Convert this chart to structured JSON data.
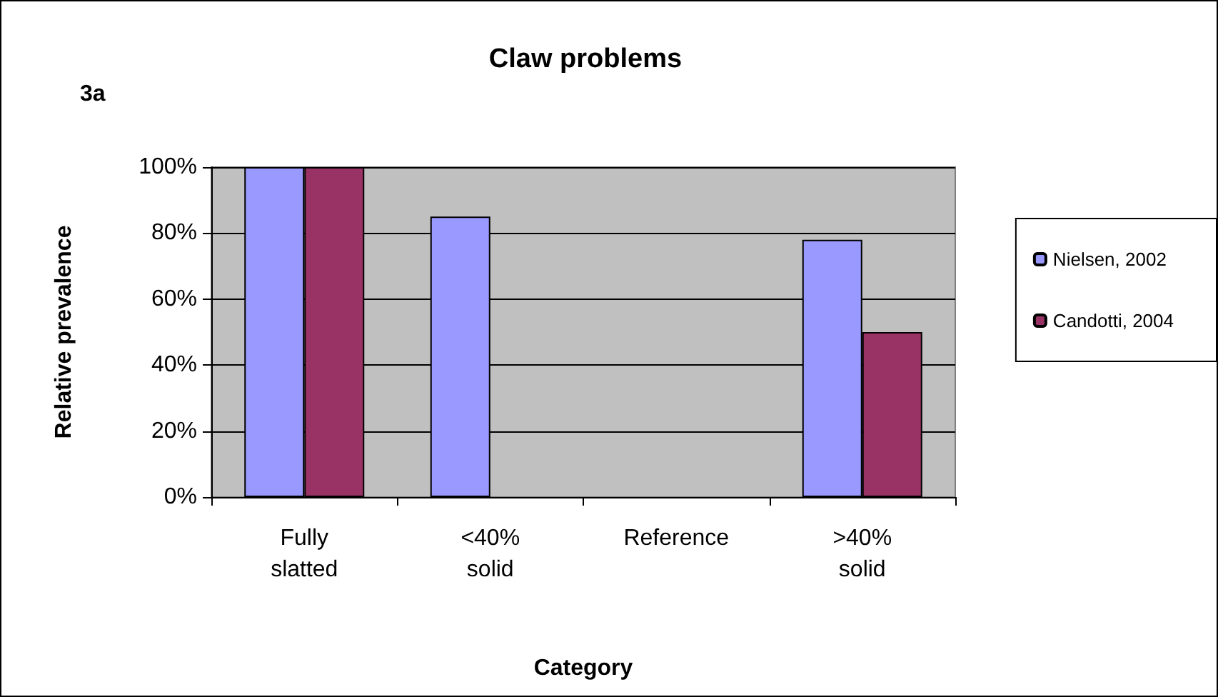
{
  "chart_data": {
    "type": "bar",
    "title": "Claw problems",
    "xlabel": "Category",
    "ylabel": "Relative prevalence",
    "annotations": [
      "3a"
    ],
    "categories": [
      "Fully slatted",
      "<40% solid",
      "Reference",
      ">40% solid"
    ],
    "series": [
      {
        "name": "Nielsen, 2002",
        "color": "#9999ff",
        "values": [
          100,
          85,
          null,
          78
        ]
      },
      {
        "name": "Candotti, 2004",
        "color": "#993366",
        "values": [
          100,
          null,
          null,
          50
        ]
      }
    ],
    "ylim": [
      0,
      100
    ],
    "yticks": [
      {
        "value": 0,
        "label": "0%"
      },
      {
        "value": 20,
        "label": "20%"
      },
      {
        "value": 40,
        "label": "40%"
      },
      {
        "value": 60,
        "label": "60%"
      },
      {
        "value": 80,
        "label": "80%"
      },
      {
        "value": 100,
        "label": "100%"
      }
    ],
    "grid": "y",
    "legend": "right"
  }
}
